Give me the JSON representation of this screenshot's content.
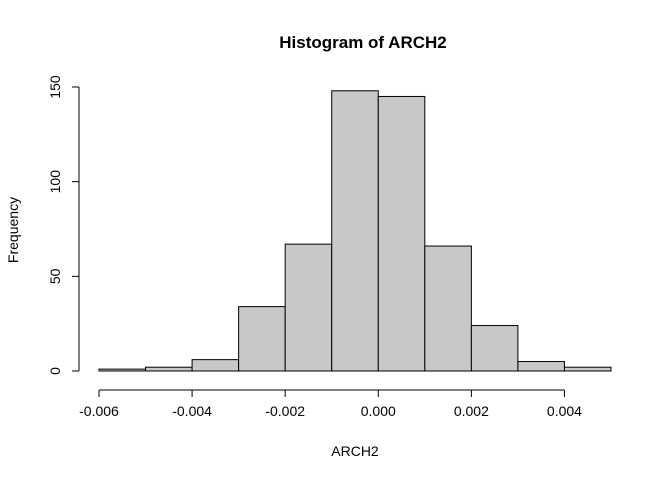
{
  "chart_data": {
    "type": "bar",
    "title": "Histogram of ARCH2",
    "xlabel": "ARCH2",
    "ylabel": "Frequency",
    "bin_edges": [
      -0.006,
      -0.005,
      -0.004,
      -0.003,
      -0.002,
      -0.001,
      0.0,
      0.001,
      0.002,
      0.003,
      0.004,
      0.005
    ],
    "values": [
      1,
      2,
      6,
      34,
      67,
      148,
      145,
      66,
      24,
      5,
      2
    ],
    "xlim": [
      -0.006,
      0.005
    ],
    "ylim": [
      0,
      150
    ],
    "x_ticks": [
      -0.006,
      -0.004,
      -0.002,
      0.0,
      0.002,
      0.004
    ],
    "x_tick_labels": [
      "-0.006",
      "-0.004",
      "-0.002",
      "0.000",
      "0.002",
      "0.004"
    ],
    "y_ticks": [
      0,
      50,
      100,
      150
    ],
    "y_tick_labels": [
      "0",
      "50",
      "100",
      "150"
    ],
    "bar_fill": "#c8c8c8",
    "grid": false,
    "legend": "none"
  }
}
